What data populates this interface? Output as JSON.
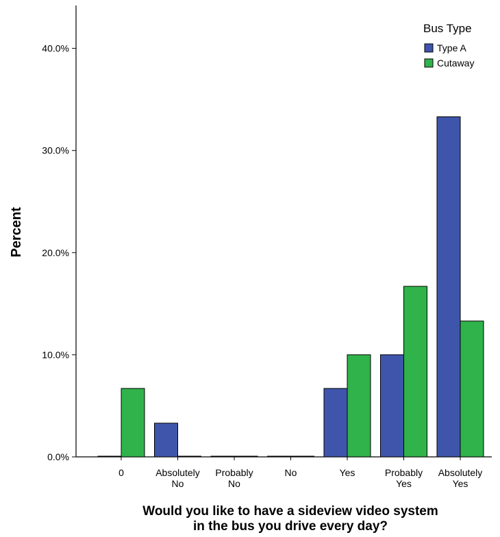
{
  "chart_data": {
    "type": "bar",
    "categories": [
      [
        "0"
      ],
      [
        "Absolutely",
        "No"
      ],
      [
        "Probably",
        "No"
      ],
      [
        "No"
      ],
      [
        "Yes"
      ],
      [
        "Probably",
        "Yes"
      ],
      [
        "Absolutely",
        "Yes"
      ]
    ],
    "series": [
      {
        "name": "Type A",
        "color": "#3f55ab",
        "values": [
          0.0,
          3.3,
          0.0,
          0.0,
          6.7,
          10.0,
          33.3
        ]
      },
      {
        "name": "Cutaway",
        "color": "#30b34a",
        "values": [
          6.7,
          0.0,
          0.0,
          0.0,
          10.0,
          16.7,
          13.3
        ]
      }
    ],
    "ylabel": "Percent",
    "xlabel_lines": [
      "Would you like to have a sideview video system",
      "in the bus you drive every day?"
    ],
    "yticks": [
      0,
      10,
      20,
      30,
      40
    ],
    "ytick_labels": [
      "0.0%",
      "10.0%",
      "20.0%",
      "30.0%",
      "40.0%"
    ],
    "ylim": [
      0,
      44.2
    ],
    "legend": {
      "title": "Bus Type",
      "position": "top-right"
    },
    "grid": false
  }
}
